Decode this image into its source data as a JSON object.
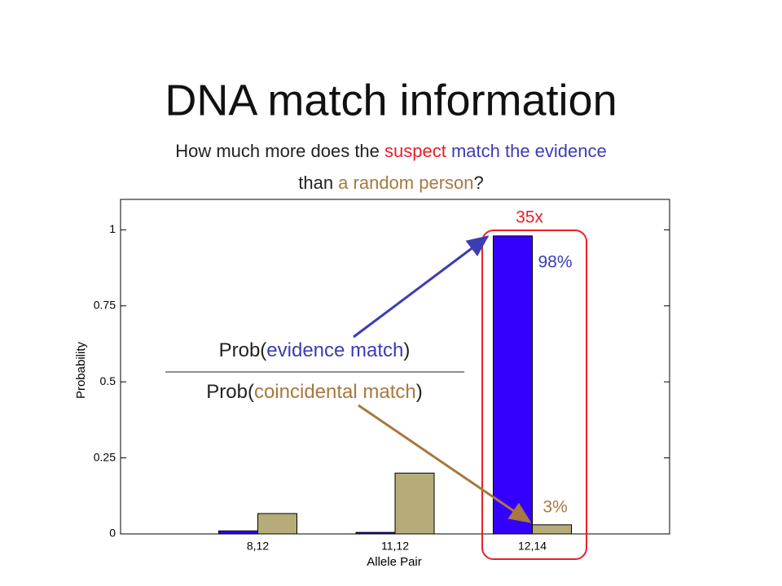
{
  "chart_data": {
    "type": "bar",
    "title": "DNA match information",
    "subtitle_lines": [
      [
        {
          "text": "How much more does the ",
          "color": "#222222"
        },
        {
          "text": "suspect",
          "color": "#e8202a"
        },
        {
          "text": " match the evidence",
          "color": "#3c3cb4"
        }
      ],
      [
        {
          "text": "than ",
          "color": "#222222"
        },
        {
          "text": "a random person",
          "color": "#a8783e"
        },
        {
          "text": "?",
          "color": "#222222"
        }
      ]
    ],
    "fraction": {
      "numerator": [
        {
          "text": "Prob(",
          "color": "#222222"
        },
        {
          "text": "evidence match",
          "color": "#3c3cb4"
        },
        {
          "text": ")",
          "color": "#222222"
        }
      ],
      "denominator": [
        {
          "text": "Prob(",
          "color": "#222222"
        },
        {
          "text": "coincidental match",
          "color": "#a8783e"
        },
        {
          "text": ")",
          "color": "#222222"
        }
      ]
    },
    "ratio_annotation": {
      "text": "35x",
      "color": "#e8202a"
    },
    "x_label": "Allele Pair",
    "y_label": "Probability",
    "categories": [
      "8,12",
      "11,12",
      "12,14"
    ],
    "series": [
      {
        "color": "#3300ff",
        "values": [
          0.01,
          0.005,
          0.98
        ],
        "value_labels": [
          null,
          null,
          "98%"
        ],
        "label_color": "#3c3cb4"
      },
      {
        "color": "#b5ac7a",
        "values": [
          0.067,
          0.2,
          0.03
        ],
        "value_labels": [
          null,
          null,
          "3%"
        ],
        "label_color": "#a8783e"
      }
    ],
    "ylim": [
      0,
      1.1
    ],
    "yticks": [
      0,
      0.25,
      0.5,
      0.75,
      1
    ]
  }
}
